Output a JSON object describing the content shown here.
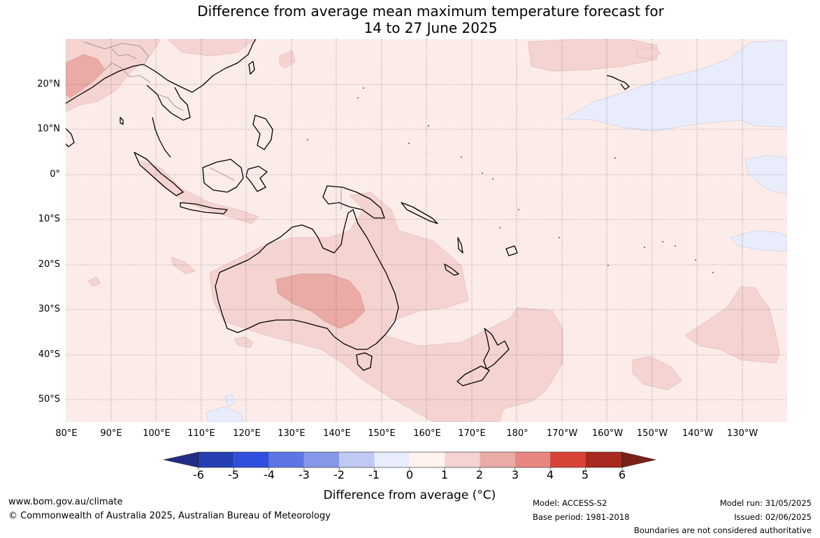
{
  "title": {
    "line1": "Difference from average mean maximum temperature forecast for",
    "line2": "14 to 27 June 2025"
  },
  "map": {
    "projection": "equirectangular",
    "lon_range": [
      80,
      240
    ],
    "lat_range": [
      -55,
      30
    ],
    "lat_labels": [
      "20°N",
      "10°N",
      "0°",
      "10°S",
      "20°S",
      "30°S",
      "40°S",
      "50°S"
    ],
    "lon_labels": [
      "80°E",
      "90°E",
      "100°E",
      "110°E",
      "120°E",
      "130°E",
      "140°E",
      "150°E",
      "160°E",
      "170°E",
      "180°",
      "170°W",
      "160°W",
      "150°W",
      "140°W",
      "130°W"
    ],
    "colors": {
      "ocean_base": "#fcece9",
      "anomaly_1_2": "#f4d3d0",
      "anomaly_2_3": "#eaaaa5",
      "anomaly_neg_0_1": "#e9ecfb",
      "coastline": "#000000",
      "gridline": "#444444"
    }
  },
  "colorbar": {
    "title": "Difference from average (°C)",
    "labels": [
      "-6",
      "-5",
      "-4",
      "-3",
      "-2",
      "-1",
      "0",
      "1",
      "2",
      "3",
      "4",
      "5",
      "6"
    ],
    "colors": [
      "#242c88",
      "#273fb3",
      "#2f4fdc",
      "#5e75e4",
      "#8798e8",
      "#c0c8f4",
      "#e9ecfb",
      "#fff2ef",
      "#f4d3d0",
      "#eaaaa5",
      "#e7867f",
      "#d84538",
      "#a82920",
      "#7a2118"
    ]
  },
  "footer": {
    "website": "www.bom.gov.au/climate",
    "copyright": "© Commonwealth of Australia 2025, Australian Bureau of Meteorology",
    "model": "Model: ACCESS-S2",
    "base_period": "Base period: 1981-2018",
    "model_run": "Model run: 31/05/2025",
    "issued": "Issued: 02/06/2025",
    "disclaimer": "Boundaries are not considered authoritative"
  }
}
